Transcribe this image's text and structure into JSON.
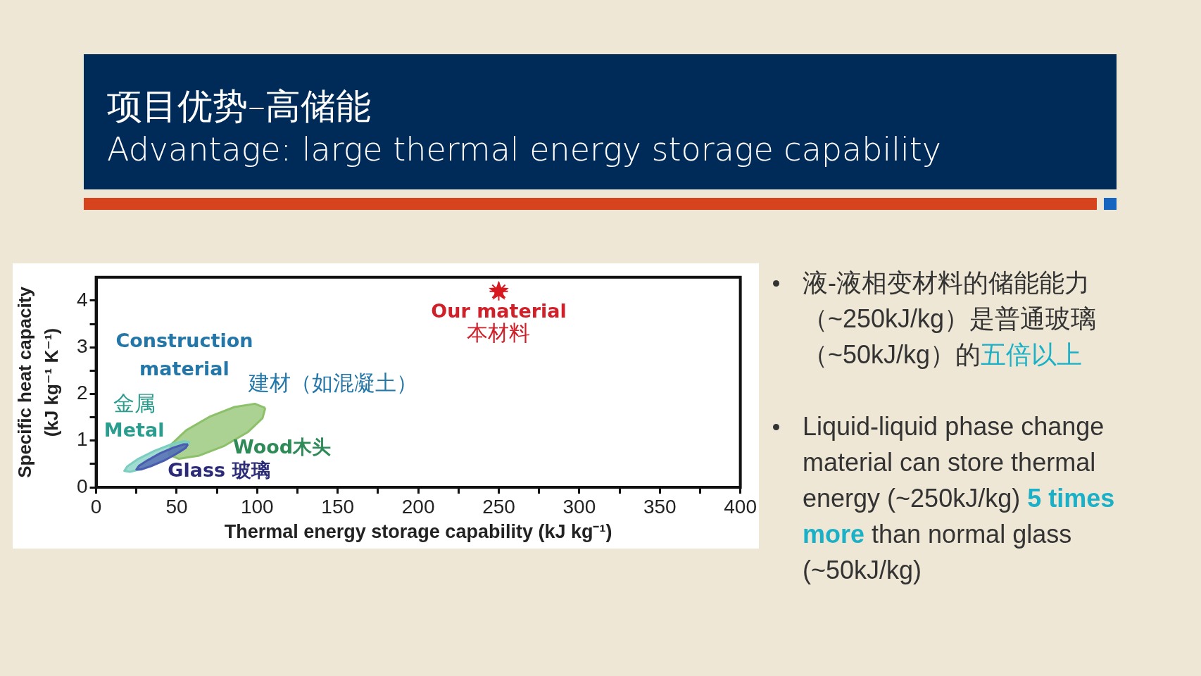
{
  "chart_data": {
    "type": "area",
    "title": "项目优势–高储能",
    "subtitle": "Advantage: large thermal energy storage capability",
    "xlabel": "Thermal energy storage capability (kJ kg⁻¹)",
    "ylabel": "Specific heat capacity (kJ kg⁻¹ K⁻¹)",
    "xlim": [
      0,
      400
    ],
    "ylim": [
      0,
      4.5
    ],
    "xticks": [
      0,
      {
        "value": 25,
        "label": null
      },
      50,
      {
        "value": 75,
        "label": null
      },
      100,
      {
        "value": 125,
        "label": null
      },
      150,
      {
        "value": 175,
        "label": null
      },
      200,
      {
        "value": 225,
        "label": null
      },
      250,
      {
        "value": 275,
        "label": null
      },
      300,
      {
        "value": 325,
        "label": null
      },
      350,
      {
        "value": 375,
        "label": null
      },
      400
    ],
    "yticks": [
      0,
      {
        "value": 0.5,
        "label": null
      },
      1,
      {
        "value": 1.5,
        "label": null
      },
      2,
      {
        "value": 2.5,
        "label": null
      },
      3,
      {
        "value": 3.5,
        "label": null
      },
      4
    ],
    "series": [
      {
        "name": "Wood木头",
        "color": "#8cc06a",
        "x": [
          105,
          98.6,
          85.9,
          70.3,
          55.9,
          46.6,
          45,
          51.4,
          64.1,
          79.7,
          94.1,
          103.3,
          105
        ],
        "values": [
          1.7,
          1.79,
          1.72,
          1.51,
          1.22,
          0.92,
          0.7,
          0.61,
          0.68,
          0.89,
          1.18,
          1.48,
          1.7
        ]
      },
      {
        "name": "金属\nMetal",
        "color": "#7ccfc0",
        "x": [
          58,
          54.4,
          46.4,
          36.1,
          26.2,
          19.4,
          17.5,
          21,
          29,
          39.4,
          49.3,
          56.1,
          58
        ],
        "values": [
          0.97,
          0.99,
          0.92,
          0.78,
          0.61,
          0.45,
          0.35,
          0.33,
          0.4,
          0.54,
          0.71,
          0.87,
          0.97
        ]
      },
      {
        "name": "Glass 玻璃",
        "color": "#4a5cb0",
        "x": [
          57,
          54.3,
          48,
          39.8,
          32,
          26.6,
          25,
          27.7,
          34,
          42.2,
          50,
          55.5,
          57
        ],
        "values": [
          0.92,
          0.92,
          0.85,
          0.73,
          0.58,
          0.46,
          0.38,
          0.38,
          0.45,
          0.57,
          0.72,
          0.84,
          0.92
        ]
      },
      {
        "name": "Our material\n本材料",
        "type": "scatter",
        "color": "#d7191f",
        "x": [
          250
        ],
        "values": [
          4.2
        ]
      }
    ],
    "annotations": [
      "Construction material",
      "建材（如混凝土）",
      "液-液相变材料的储能能力（~250kJ/kg）是普通玻璃（~50kJ/kg）的",
      "五倍以上",
      "Liquid-liquid phase change material can store thermal energy (~250kJ/kg) ",
      "5 times more",
      " than normal glass (~50kJ/kg)"
    ]
  }
}
